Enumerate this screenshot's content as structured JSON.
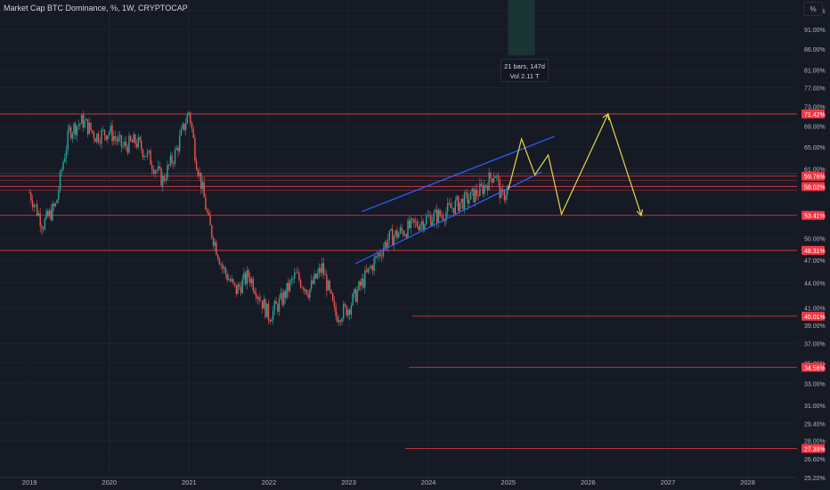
{
  "header": {
    "title": "Market Cap BTC Dominance, %, 1W, CRYPTOCAP"
  },
  "toolbar": {
    "scale_label": "%"
  },
  "measure_tooltip": {
    "line1": "21 bars, 147d",
    "line2": "Vol 2.11 T"
  },
  "colors": {
    "background": "#161a25",
    "bull": "#26a69a",
    "bear": "#ef5350",
    "level_line": "#f23645",
    "channel": "#2962ff",
    "projection": "#e8d44d",
    "measure_band": "#1f4a40"
  },
  "chart_data": {
    "type": "line",
    "title": "Market Cap BTC Dominance, %, 1W, CRYPTOCAP",
    "xlabel": "",
    "ylabel": "",
    "y_scale": "log",
    "ylim": [
      25.2,
      99
    ],
    "x_ticks": [
      "2019",
      "2020",
      "2021",
      "2022",
      "2023",
      "2024",
      "2025",
      "2026",
      "2027",
      "2028"
    ],
    "y_ticks": [
      "96.00%",
      "91.00%",
      "86.00%",
      "81.00%",
      "77.00%",
      "73.00%",
      "69.00%",
      "65.00%",
      "61.00%",
      "50.00%",
      "47.00%",
      "44.00%",
      "41.00%",
      "39.00%",
      "37.00%",
      "35.00%",
      "33.00%",
      "31.00%",
      "29.40%",
      "28.00%",
      "26.60%",
      "25.20%"
    ],
    "price_series": {
      "name": "BTC Dominance",
      "points": [
        [
          "2019-01",
          57
        ],
        [
          "2019-03",
          52
        ],
        [
          "2019-05",
          55
        ],
        [
          "2019-06",
          62
        ],
        [
          "2019-07",
          68
        ],
        [
          "2019-09",
          70
        ],
        [
          "2019-11",
          67
        ],
        [
          "2020-01",
          68
        ],
        [
          "2020-03",
          65
        ],
        [
          "2020-05",
          66
        ],
        [
          "2020-07",
          63
        ],
        [
          "2020-09",
          59
        ],
        [
          "2020-11",
          64
        ],
        [
          "2021-01",
          72
        ],
        [
          "2021-02",
          63
        ],
        [
          "2021-04",
          52
        ],
        [
          "2021-06",
          46
        ],
        [
          "2021-08",
          43
        ],
        [
          "2021-10",
          45
        ],
        [
          "2022-01",
          40
        ],
        [
          "2022-03",
          42
        ],
        [
          "2022-05",
          45
        ],
        [
          "2022-07",
          43
        ],
        [
          "2022-09",
          46
        ],
        [
          "2022-11",
          40
        ],
        [
          "2023-01",
          41
        ],
        [
          "2023-03",
          44
        ],
        [
          "2023-05",
          47
        ],
        [
          "2023-07",
          50
        ],
        [
          "2023-09",
          51
        ],
        [
          "2023-11",
          52
        ],
        [
          "2024-01",
          53
        ],
        [
          "2024-03",
          53.5
        ],
        [
          "2024-05",
          55
        ],
        [
          "2024-07",
          56
        ],
        [
          "2024-09",
          57.5
        ],
        [
          "2024-11",
          60.5
        ],
        [
          "2024-12",
          56
        ],
        [
          "2025-01",
          58
        ]
      ]
    },
    "level_labels": [
      {
        "label": "71.42%",
        "value": 71.42
      },
      {
        "label": "59.76%",
        "value": 59.76
      },
      {
        "label": "58.02%",
        "value": 58.02
      },
      {
        "label": "53.41%",
        "value": 53.41
      },
      {
        "label": "48.31%",
        "value": 48.31
      },
      {
        "label": "40.01%",
        "value": 40.01
      },
      {
        "label": "34.56%",
        "value": 34.56
      },
      {
        "label": "27.39%",
        "value": 27.39
      }
    ],
    "extra_levels": [
      60.2,
      59.0,
      57.4
    ],
    "channel": {
      "upper": [
        [
          "2023-03",
          54.0
        ],
        [
          "2025-08",
          67.0
        ]
      ],
      "lower": [
        [
          "2023-02",
          46.5
        ],
        [
          "2025-06",
          60.5
        ]
      ]
    },
    "projection": [
      [
        "2025-01",
        57.5
      ],
      [
        "2025-03",
        66.5
      ],
      [
        "2025-05",
        60
      ],
      [
        "2025-07",
        63.5
      ],
      [
        "2025-09",
        53.6
      ],
      [
        "2026-04",
        71.4
      ],
      [
        "2026-09",
        53.4
      ]
    ],
    "measure_band": {
      "x_start": "2025-01",
      "x_end": "2025-05"
    }
  }
}
